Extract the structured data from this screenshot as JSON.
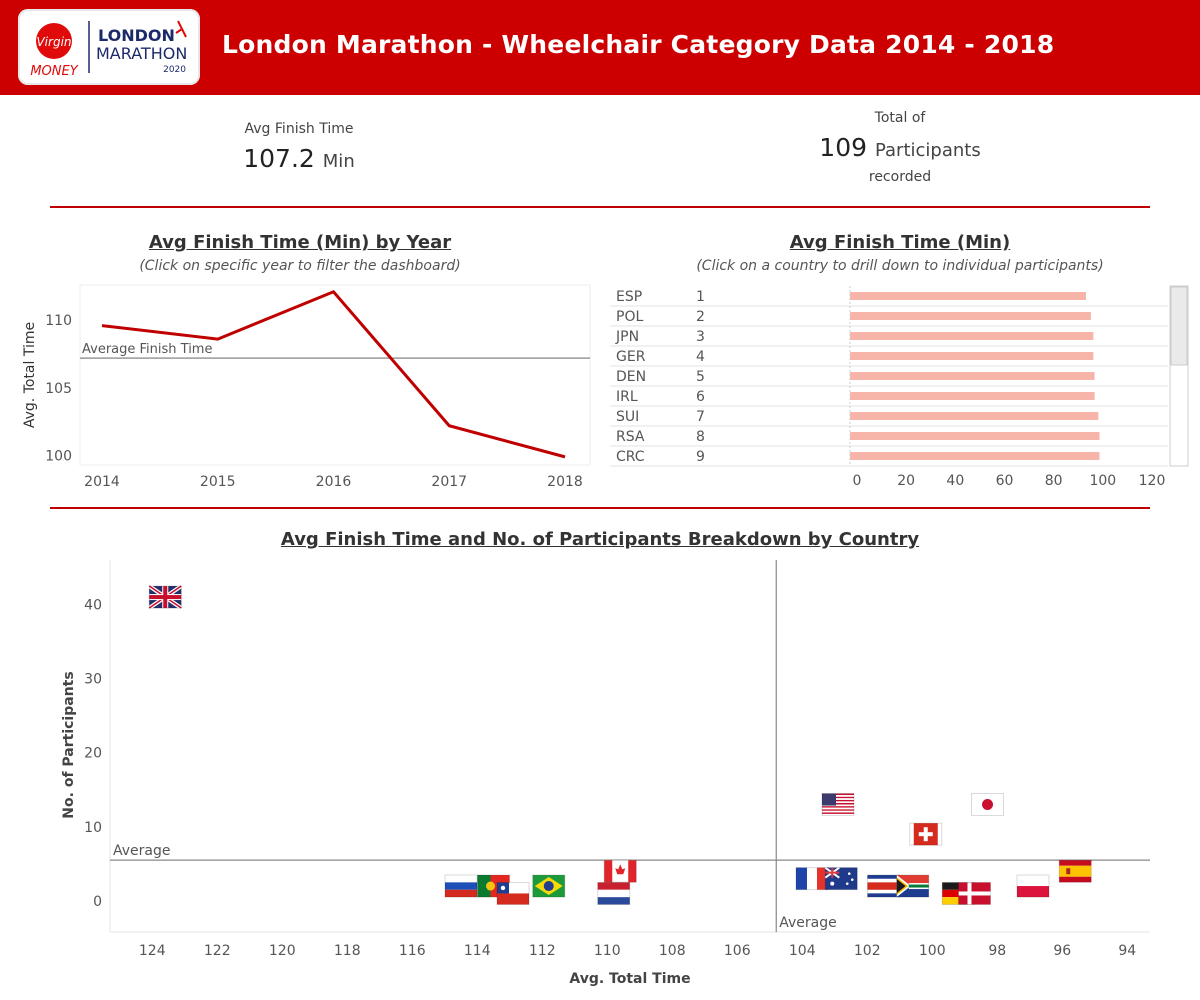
{
  "header": {
    "title": "London Marathon - Wheelchair Category Data 2014 - 2018",
    "logo": {
      "brand": "Virgin",
      "money": "MONEY",
      "line1": "LONDON",
      "line2": "MARATHON",
      "year": "2020"
    },
    "bg_color": "#cc0000"
  },
  "kpis": {
    "avg_label": "Avg Finish Time",
    "avg_value": "107.2",
    "avg_unit": "Min",
    "total_prefix": "Total of",
    "total_value": "109",
    "total_unit": "Participants",
    "total_suffix": "recorded"
  },
  "line_panel": {
    "title": "Avg Finish Time (Min) by Year",
    "subtitle": "(Click on specific year to filter the dashboard)"
  },
  "bar_panel": {
    "title": "Avg Finish Time (Min)",
    "subtitle": "(Click on a country to drill down to individual participants)"
  },
  "scatter_panel": {
    "title": "Avg Finish Time and No. of Participants Breakdown by Country"
  },
  "chart_data": [
    {
      "type": "line",
      "x": [
        "2014",
        "2015",
        "2016",
        "2017",
        "2018"
      ],
      "values": [
        109.6,
        108.6,
        112.1,
        102.2,
        99.9
      ],
      "ylabel": "Avg. Total Time",
      "yticks": [
        100,
        105,
        110
      ],
      "ylim": [
        99.3,
        112.6
      ],
      "reference_line": {
        "label": "Average Finish Time",
        "value": 107.2
      },
      "color": "#c00000"
    },
    {
      "type": "bar",
      "orientation": "horizontal",
      "categories": [
        "ESP",
        "POL",
        "JPN",
        "GER",
        "DEN",
        "IRL",
        "SUI",
        "RSA",
        "CRC"
      ],
      "ranks": [
        "1",
        "2",
        "3",
        "4",
        "5",
        "6",
        "7",
        "8",
        "9"
      ],
      "values": [
        96,
        98,
        99,
        99,
        99.5,
        99.5,
        101,
        101.5,
        101.5
      ],
      "xticks": [
        0,
        20,
        40,
        60,
        80,
        100,
        120
      ],
      "xlim": [
        0,
        124
      ],
      "color": "#f7b5aa"
    },
    {
      "type": "scatter",
      "xlabel": "Avg. Total Time",
      "ylabel": "No. of Participants",
      "x_reversed": true,
      "xticks": [
        124,
        122,
        120,
        118,
        116,
        114,
        112,
        110,
        108,
        106,
        104,
        102,
        100,
        98,
        96,
        94
      ],
      "yticks": [
        0,
        10,
        20,
        30,
        40
      ],
      "xlim": [
        125.3,
        93.3
      ],
      "ylim": [
        -4.2,
        46
      ],
      "ref_x": {
        "label": "Average",
        "value": 104.8
      },
      "ref_y": {
        "label": "Average",
        "value": 5.5
      },
      "points": [
        {
          "country": "GBR",
          "icon": "flag-gbr-icon",
          "x": 123.6,
          "y": 41
        },
        {
          "country": "RUS",
          "icon": "flag-rus-icon",
          "x": 114.5,
          "y": 2
        },
        {
          "country": "POR",
          "icon": "flag-por-icon",
          "x": 113.5,
          "y": 2
        },
        {
          "country": "CHI",
          "icon": "flag-chi-icon",
          "x": 112.9,
          "y": 1
        },
        {
          "country": "BRA",
          "icon": "flag-bra-icon",
          "x": 111.8,
          "y": 2
        },
        {
          "country": "CAN",
          "icon": "flag-can-icon",
          "x": 109.6,
          "y": 4
        },
        {
          "country": "NED",
          "icon": "flag-ned-icon",
          "x": 109.8,
          "y": 1
        },
        {
          "country": "USA",
          "icon": "flag-usa-icon",
          "x": 102.9,
          "y": 13
        },
        {
          "country": "FRA",
          "icon": "flag-fra-icon",
          "x": 103.7,
          "y": 3
        },
        {
          "country": "AUS",
          "icon": "flag-aus-icon",
          "x": 102.8,
          "y": 3
        },
        {
          "country": "CRC",
          "icon": "flag-crc-icon",
          "x": 101.5,
          "y": 2
        },
        {
          "country": "RSA",
          "icon": "flag-rsa-icon",
          "x": 100.6,
          "y": 2
        },
        {
          "country": "JPN",
          "icon": "flag-jpn-icon",
          "x": 98.3,
          "y": 13
        },
        {
          "country": "SUI",
          "icon": "flag-sui-icon",
          "x": 100.2,
          "y": 9
        },
        {
          "country": "GER",
          "icon": "flag-ger-icon",
          "x": 99.2,
          "y": 1
        },
        {
          "country": "DEN",
          "icon": "flag-den-icon",
          "x": 98.7,
          "y": 1
        },
        {
          "country": "POL",
          "icon": "flag-pol-icon",
          "x": 96.9,
          "y": 2
        },
        {
          "country": "ESP",
          "icon": "flag-esp-icon",
          "x": 95.6,
          "y": 4
        }
      ]
    }
  ]
}
